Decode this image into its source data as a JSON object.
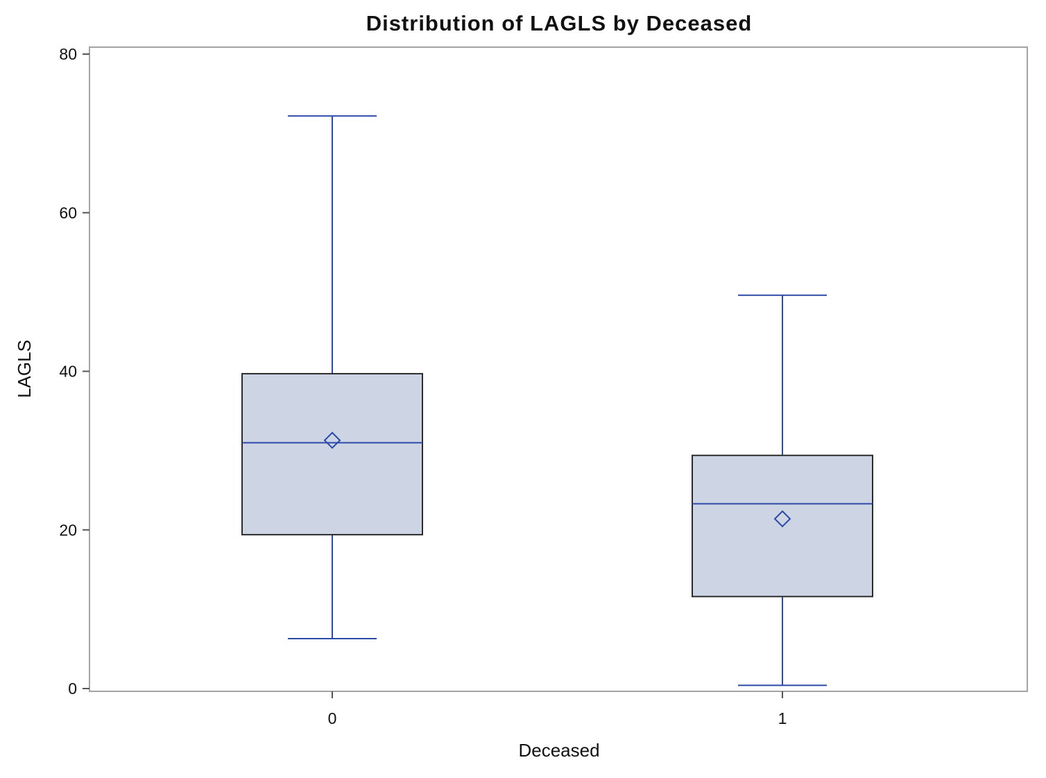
{
  "chart_data": {
    "type": "box",
    "title": "Distribution of LAGLS by Deceased",
    "xlabel": "Deceased",
    "ylabel": "LAGLS",
    "ylim": [
      0,
      80
    ],
    "yticks": [
      "0",
      "20",
      "40",
      "60",
      "80"
    ],
    "categories": [
      "0",
      "1"
    ],
    "boxes": [
      {
        "category": "0",
        "whisker_low": 6.3,
        "q1": 19.4,
        "median": 31.0,
        "mean": 31.3,
        "q3": 39.7,
        "whisker_high": 72.2
      },
      {
        "category": "1",
        "whisker_low": 0.4,
        "q1": 11.6,
        "median": 23.3,
        "mean": 21.4,
        "q3": 29.4,
        "whisker_high": 49.6
      }
    ],
    "colors": {
      "box_fill": "#cdd5e4",
      "box_outline": "#2b2b2b",
      "line": "#2b4aa8",
      "frame": "#a3a3a3"
    }
  }
}
